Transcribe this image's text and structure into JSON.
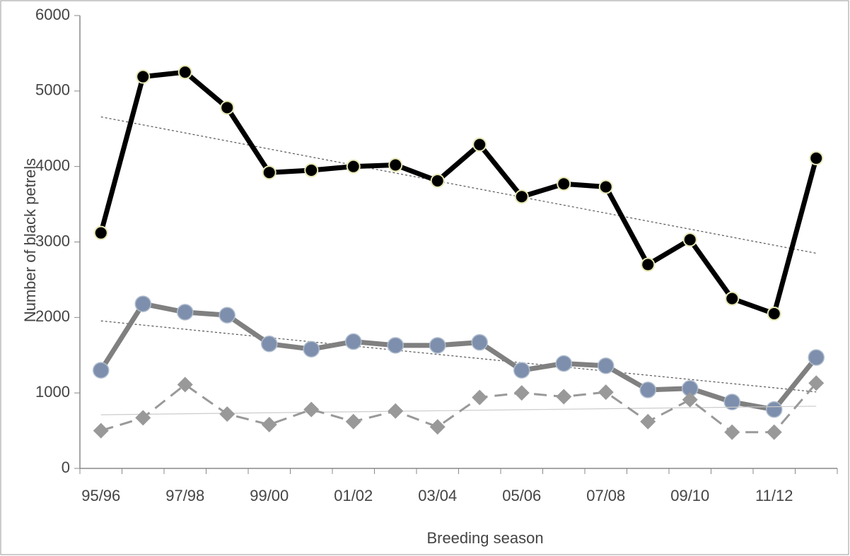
{
  "chart_data": {
    "type": "line",
    "y_label": "Number of black petrels",
    "x_label": "Breeding season",
    "categories": [
      "95/96",
      null,
      "97/98",
      null,
      "99/00",
      null,
      "01/02",
      null,
      "03/04",
      null,
      "05/06",
      null,
      "07/08",
      null,
      "09/10",
      null,
      "11/12",
      null
    ],
    "series": [
      {
        "color": "#000000",
        "marker": "circle",
        "dashed": false,
        "values": [
          3120,
          5190,
          5250,
          4780,
          3920,
          3950,
          4000,
          4020,
          3810,
          4290,
          3600,
          3770,
          3730,
          2700,
          3030,
          2250,
          2050,
          4110
        ]
      },
      {
        "color": "#808080",
        "marker": "circle",
        "dashed": false,
        "values": [
          1300,
          2180,
          2070,
          2030,
          1650,
          1580,
          1680,
          1630,
          1630,
          1670,
          1300,
          1390,
          1360,
          1040,
          1060,
          880,
          780,
          1470
        ]
      },
      {
        "color": "#999999",
        "marker": "diamond",
        "dashed": true,
        "values": [
          500,
          670,
          1110,
          720,
          580,
          780,
          620,
          760,
          550,
          940,
          1000,
          950,
          1010,
          620,
          910,
          480,
          480,
          1130
        ]
      }
    ],
    "trendline": true,
    "grid": false,
    "ylim": [
      0,
      6000
    ],
    "yticks": [
      0,
      1000,
      2000,
      3000,
      4000,
      5000,
      6000
    ]
  }
}
